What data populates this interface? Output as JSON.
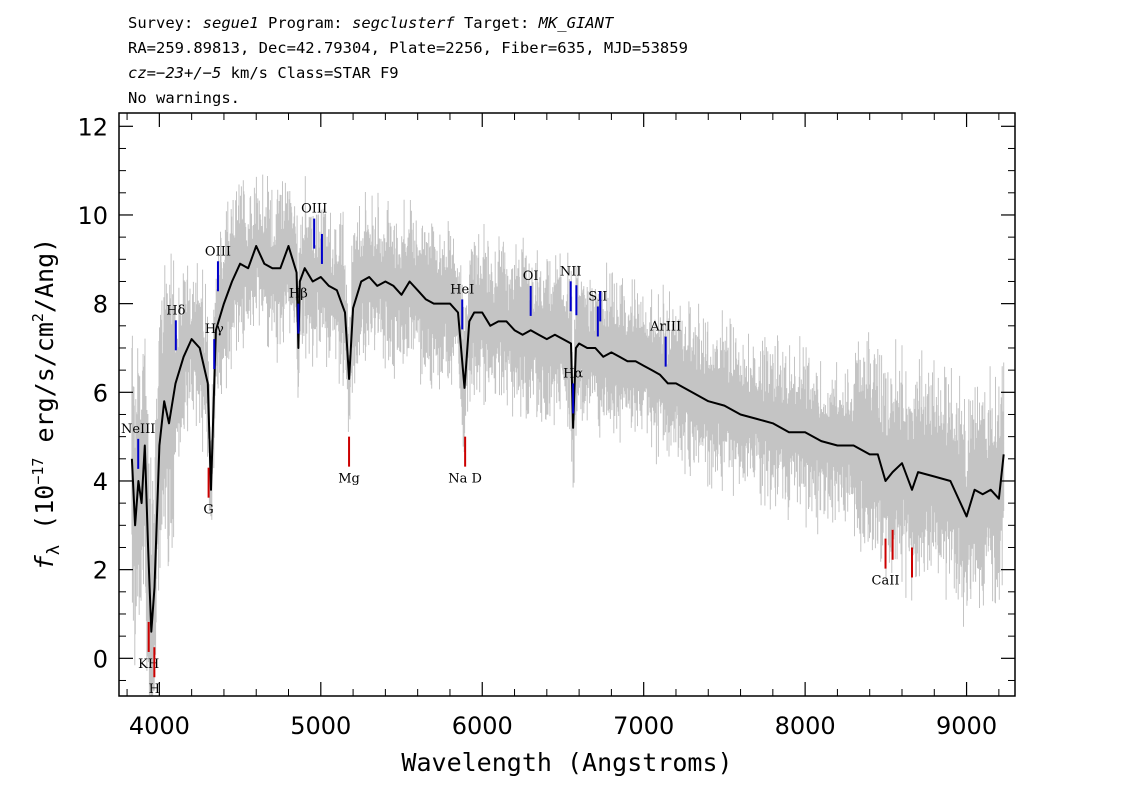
{
  "header": {
    "line1": {
      "survey_label": "Survey: ",
      "survey": "segue1",
      "program_label": " Program: ",
      "program": "segclusterf",
      "target_label": " Target: ",
      "target": "MK_GIANT"
    },
    "line2": "RA=259.89813, Dec=42.79304, Plate=2256, Fiber=635, MJD=53859",
    "line3": {
      "cz_label": "cz=",
      "cz_value": "−23+/−5",
      "rest": " km/s Class=STAR F9"
    },
    "line4": "No warnings."
  },
  "chart_data": {
    "type": "line",
    "xlabel": "Wavelength (Angstroms)",
    "ylabel": {
      "prefix": "f",
      "sub": "λ",
      "unit_open": " (10",
      "exp": "−17",
      "unit_mid": " erg/s/cm",
      "exp2": "2",
      "unit_close": "/Ang)"
    },
    "xlim": [
      3750,
      9300
    ],
    "ylim": [
      -0.85,
      12.3
    ],
    "xticks": [
      4000,
      5000,
      6000,
      7000,
      8000,
      9000
    ],
    "yticks": [
      0,
      2,
      4,
      6,
      8,
      10,
      12
    ],
    "series": [
      {
        "color": "#000000",
        "x": [
          3830,
          3850,
          3870,
          3890,
          3910,
          3930,
          3950,
          3970,
          4000,
          4030,
          4060,
          4100,
          4150,
          4200,
          4250,
          4300,
          4320,
          4350,
          4400,
          4450,
          4500,
          4550,
          4600,
          4650,
          4700,
          4750,
          4800,
          4850,
          4861,
          4870,
          4900,
          4950,
          5000,
          5050,
          5100,
          5150,
          5175,
          5200,
          5250,
          5300,
          5350,
          5400,
          5450,
          5500,
          5550,
          5600,
          5650,
          5700,
          5750,
          5800,
          5850,
          5890,
          5920,
          5950,
          6000,
          6050,
          6100,
          6150,
          6200,
          6250,
          6300,
          6350,
          6400,
          6450,
          6500,
          6550,
          6563,
          6580,
          6600,
          6650,
          6700,
          6750,
          6800,
          6850,
          6900,
          6950,
          7000,
          7050,
          7100,
          7150,
          7200,
          7300,
          7400,
          7500,
          7600,
          7700,
          7800,
          7900,
          8000,
          8100,
          8200,
          8300,
          8400,
          8450,
          8498,
          8542,
          8600,
          8662,
          8700,
          8800,
          8900,
          9000,
          9050,
          9100,
          9150,
          9200,
          9230
        ],
        "y": [
          4.5,
          3.0,
          4.0,
          3.5,
          4.8,
          2.5,
          0.6,
          1.6,
          4.8,
          5.8,
          5.3,
          6.2,
          6.8,
          7.2,
          7.0,
          6.2,
          3.8,
          7.4,
          8.0,
          8.5,
          8.9,
          8.8,
          9.3,
          8.9,
          8.8,
          8.8,
          9.3,
          8.7,
          7.0,
          8.5,
          8.8,
          8.5,
          8.6,
          8.4,
          8.3,
          7.8,
          6.3,
          7.9,
          8.5,
          8.6,
          8.4,
          8.5,
          8.4,
          8.2,
          8.5,
          8.3,
          8.1,
          8.0,
          8.0,
          8.0,
          7.8,
          6.1,
          7.6,
          7.8,
          7.8,
          7.5,
          7.6,
          7.6,
          7.4,
          7.3,
          7.4,
          7.3,
          7.2,
          7.3,
          7.2,
          7.1,
          5.2,
          7.0,
          7.1,
          7.0,
          7.0,
          6.8,
          6.9,
          6.8,
          6.7,
          6.7,
          6.6,
          6.5,
          6.4,
          6.2,
          6.2,
          6.0,
          5.8,
          5.7,
          5.5,
          5.4,
          5.3,
          5.1,
          5.1,
          4.9,
          4.8,
          4.8,
          4.6,
          4.6,
          4.0,
          4.2,
          4.4,
          3.8,
          4.2,
          4.1,
          4.0,
          3.2,
          3.8,
          3.7,
          3.8,
          3.6,
          4.6
        ]
      }
    ],
    "lines_blue": [
      {
        "name": "NeIII",
        "wave": 3869
      },
      {
        "name": "Hδ",
        "wave": 4102
      },
      {
        "name": "Hγ",
        "wave": 4340
      },
      {
        "name": "OIII",
        "wave": 4363
      },
      {
        "name": "Hβ",
        "wave": 4861
      },
      {
        "name": "OIII",
        "wave": 4959
      },
      {
        "name": "OIII",
        "wave": 5007
      },
      {
        "name": "HeI",
        "wave": 5876
      },
      {
        "name": "OI",
        "wave": 6300
      },
      {
        "name": "NII",
        "wave": 6548
      },
      {
        "name": "Hα",
        "wave": 6563
      },
      {
        "name": "NII",
        "wave": 6583
      },
      {
        "name": "SII",
        "wave": 6716
      },
      {
        "name": "SII",
        "wave": 6731
      },
      {
        "name": "ArIII",
        "wave": 7136
      }
    ],
    "lines_red": [
      {
        "name": "KH",
        "wave": 3934
      },
      {
        "name": "H",
        "wave": 3969
      },
      {
        "name": "G",
        "wave": 4305
      },
      {
        "name": "Mg",
        "wave": 5175
      },
      {
        "name": "Na D",
        "wave": 5894
      },
      {
        "name": "CaII",
        "wave": 8498
      },
      {
        "name": "CaII",
        "wave": 8542
      },
      {
        "name": "CaII",
        "wave": 8662
      }
    ]
  }
}
